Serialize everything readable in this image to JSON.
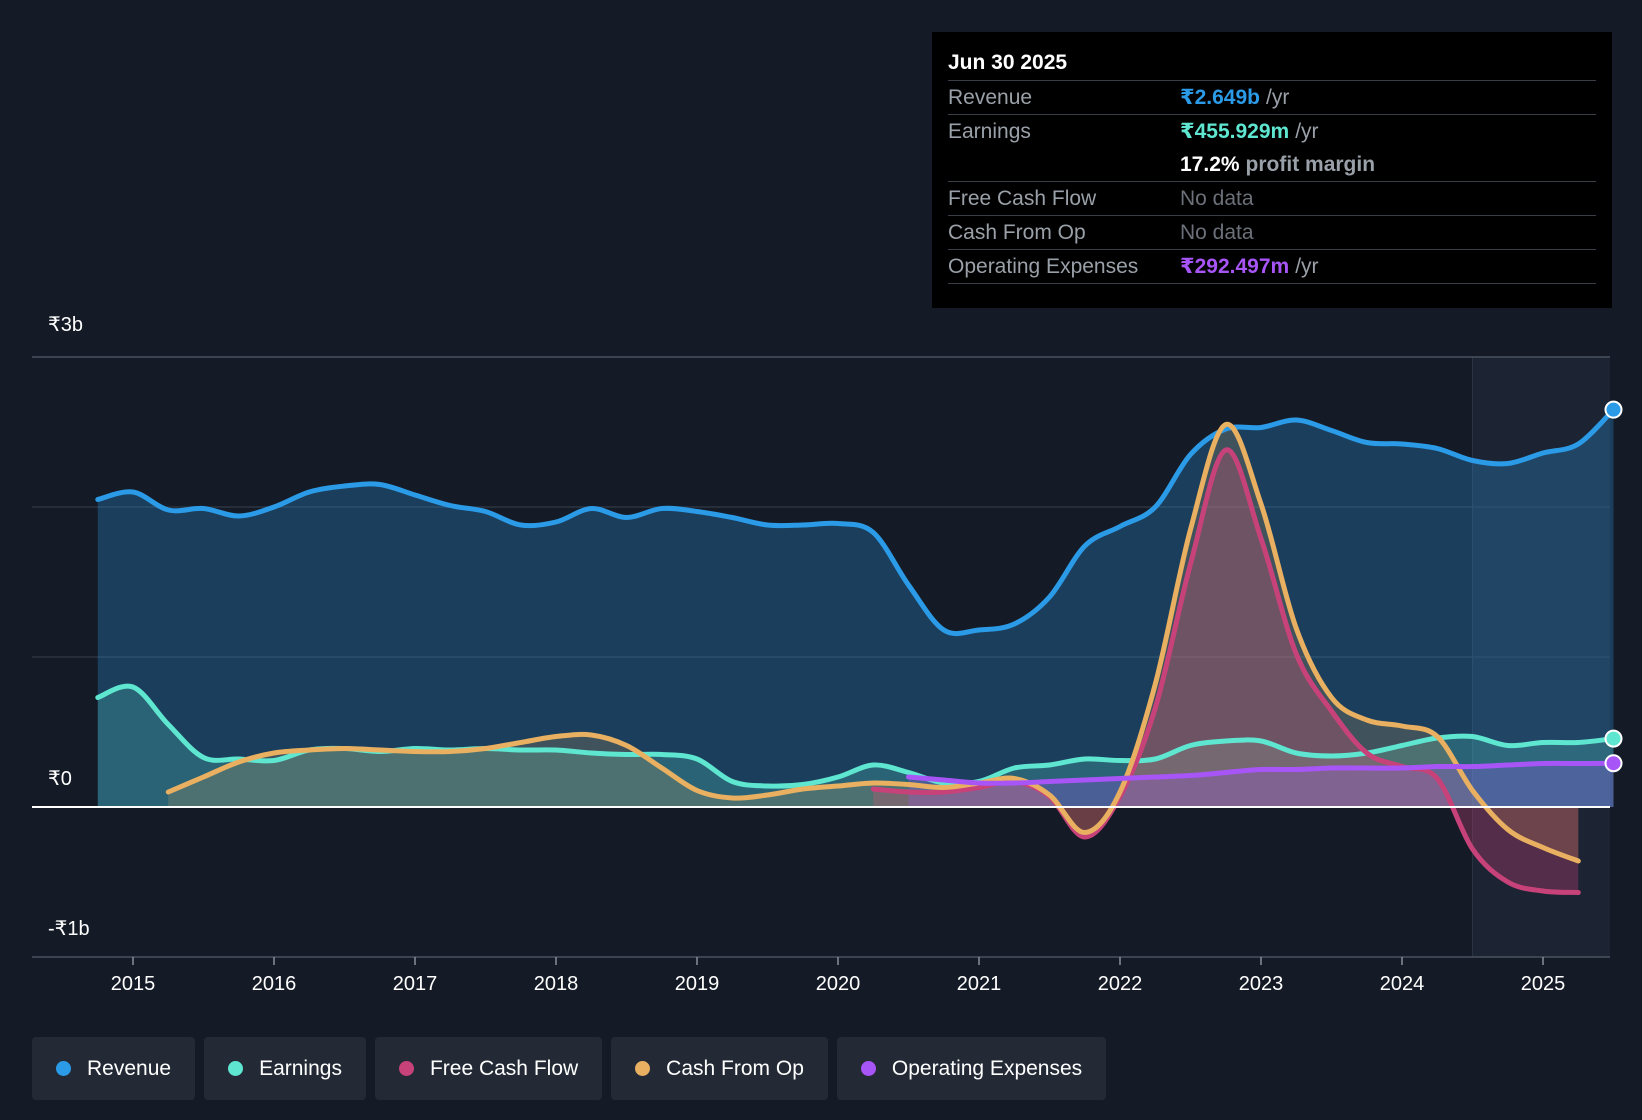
{
  "tooltip": {
    "date": "Jun 30 2025",
    "revenue_label": "Revenue",
    "revenue_value": "₹2.649b",
    "revenue_unit": "/yr",
    "earnings_label": "Earnings",
    "earnings_value": "₹455.929m",
    "earnings_unit": "/yr",
    "margin_value": "17.2%",
    "margin_label": "profit margin",
    "fcf_label": "Free Cash Flow",
    "fcf_value": "No data",
    "cfo_label": "Cash From Op",
    "cfo_value": "No data",
    "opex_label": "Operating Expenses",
    "opex_value": "₹292.497m",
    "opex_unit": "/yr"
  },
  "legend": {
    "revenue": "Revenue",
    "earnings": "Earnings",
    "fcf": "Free Cash Flow",
    "cfo": "Cash From Op",
    "opex": "Operating Expenses"
  },
  "colors": {
    "revenue": "#2b9be8",
    "earnings": "#5ee6d0",
    "fcf": "#c8427a",
    "cfo": "#e8b060",
    "opex": "#a855f7",
    "background": "#151b26"
  },
  "chart_data": {
    "type": "line",
    "title": "",
    "xlabel": "",
    "ylabel": "",
    "y_tick_labels": [
      "₹3b",
      "₹0",
      "-₹1b"
    ],
    "ylim": [
      -1.0,
      3.0
    ],
    "xlim": [
      2014.25,
      2025.5
    ],
    "x_ticks": [
      2015,
      2016,
      2017,
      2018,
      2019,
      2020,
      2021,
      2022,
      2023,
      2024,
      2025
    ],
    "x_tick_labels": [
      "2015",
      "2016",
      "2017",
      "2018",
      "2019",
      "2020",
      "2021",
      "2022",
      "2023",
      "2024",
      "2025"
    ],
    "forecast_start": 2024.5,
    "series": [
      {
        "name": "Revenue",
        "key": "revenue",
        "points": [
          [
            2014.75,
            2.05
          ],
          [
            2015.0,
            2.1
          ],
          [
            2015.25,
            1.98
          ],
          [
            2015.5,
            1.99
          ],
          [
            2015.75,
            1.94
          ],
          [
            2016.0,
            2.0
          ],
          [
            2016.25,
            2.1
          ],
          [
            2016.5,
            2.14
          ],
          [
            2016.75,
            2.15
          ],
          [
            2017.0,
            2.08
          ],
          [
            2017.25,
            2.01
          ],
          [
            2017.5,
            1.97
          ],
          [
            2017.75,
            1.88
          ],
          [
            2018.0,
            1.9
          ],
          [
            2018.25,
            1.99
          ],
          [
            2018.5,
            1.93
          ],
          [
            2018.75,
            1.99
          ],
          [
            2019.0,
            1.97
          ],
          [
            2019.25,
            1.93
          ],
          [
            2019.5,
            1.88
          ],
          [
            2019.75,
            1.88
          ],
          [
            2020.0,
            1.89
          ],
          [
            2020.25,
            1.83
          ],
          [
            2020.5,
            1.48
          ],
          [
            2020.75,
            1.18
          ],
          [
            2021.0,
            1.18
          ],
          [
            2021.25,
            1.22
          ],
          [
            2021.5,
            1.4
          ],
          [
            2021.75,
            1.74
          ],
          [
            2022.0,
            1.87
          ],
          [
            2022.25,
            2.0
          ],
          [
            2022.5,
            2.35
          ],
          [
            2022.75,
            2.52
          ],
          [
            2023.0,
            2.53
          ],
          [
            2023.25,
            2.58
          ],
          [
            2023.5,
            2.51
          ],
          [
            2023.75,
            2.43
          ],
          [
            2024.0,
            2.42
          ],
          [
            2024.25,
            2.39
          ],
          [
            2024.5,
            2.31
          ],
          [
            2024.75,
            2.29
          ],
          [
            2025.0,
            2.36
          ],
          [
            2025.25,
            2.42
          ],
          [
            2025.5,
            2.649
          ]
        ]
      },
      {
        "name": "Earnings",
        "key": "earnings",
        "points": [
          [
            2014.75,
            0.73
          ],
          [
            2015.0,
            0.8
          ],
          [
            2015.25,
            0.55
          ],
          [
            2015.5,
            0.33
          ],
          [
            2015.75,
            0.32
          ],
          [
            2016.0,
            0.31
          ],
          [
            2016.25,
            0.38
          ],
          [
            2016.5,
            0.39
          ],
          [
            2016.75,
            0.37
          ],
          [
            2017.0,
            0.39
          ],
          [
            2017.25,
            0.38
          ],
          [
            2017.5,
            0.39
          ],
          [
            2017.75,
            0.38
          ],
          [
            2018.0,
            0.38
          ],
          [
            2018.25,
            0.36
          ],
          [
            2018.5,
            0.35
          ],
          [
            2018.75,
            0.35
          ],
          [
            2019.0,
            0.32
          ],
          [
            2019.25,
            0.17
          ],
          [
            2019.5,
            0.14
          ],
          [
            2019.75,
            0.15
          ],
          [
            2020.0,
            0.2
          ],
          [
            2020.25,
            0.28
          ],
          [
            2020.5,
            0.23
          ],
          [
            2020.75,
            0.16
          ],
          [
            2021.0,
            0.17
          ],
          [
            2021.25,
            0.26
          ],
          [
            2021.5,
            0.28
          ],
          [
            2021.75,
            0.32
          ],
          [
            2022.0,
            0.31
          ],
          [
            2022.25,
            0.32
          ],
          [
            2022.5,
            0.41
          ],
          [
            2022.75,
            0.44
          ],
          [
            2023.0,
            0.44
          ],
          [
            2023.25,
            0.36
          ],
          [
            2023.5,
            0.34
          ],
          [
            2023.75,
            0.36
          ],
          [
            2024.0,
            0.41
          ],
          [
            2024.25,
            0.46
          ],
          [
            2024.5,
            0.47
          ],
          [
            2024.75,
            0.41
          ],
          [
            2025.0,
            0.43
          ],
          [
            2025.25,
            0.43
          ],
          [
            2025.5,
            0.456
          ]
        ]
      },
      {
        "name": "Free Cash Flow",
        "key": "fcf",
        "points": [
          [
            2020.25,
            0.12
          ],
          [
            2020.5,
            0.1
          ],
          [
            2020.75,
            0.1
          ],
          [
            2021.0,
            0.13
          ],
          [
            2021.25,
            0.17
          ],
          [
            2021.5,
            0.07
          ],
          [
            2021.75,
            -0.2
          ],
          [
            2022.0,
            0.07
          ],
          [
            2022.25,
            0.66
          ],
          [
            2022.5,
            1.62
          ],
          [
            2022.75,
            2.38
          ],
          [
            2023.0,
            1.79
          ],
          [
            2023.25,
            1.02
          ],
          [
            2023.5,
            0.64
          ],
          [
            2023.75,
            0.36
          ],
          [
            2024.0,
            0.27
          ],
          [
            2024.25,
            0.19
          ],
          [
            2024.5,
            -0.28
          ],
          [
            2024.75,
            -0.5
          ],
          [
            2025.0,
            -0.56
          ],
          [
            2025.25,
            -0.57
          ]
        ]
      },
      {
        "name": "Cash From Op",
        "key": "cfo",
        "points": [
          [
            2015.25,
            0.1
          ],
          [
            2015.5,
            0.2
          ],
          [
            2015.75,
            0.3
          ],
          [
            2016.0,
            0.36
          ],
          [
            2016.25,
            0.38
          ],
          [
            2016.5,
            0.39
          ],
          [
            2016.75,
            0.38
          ],
          [
            2017.0,
            0.37
          ],
          [
            2017.25,
            0.37
          ],
          [
            2017.5,
            0.39
          ],
          [
            2017.75,
            0.43
          ],
          [
            2018.0,
            0.47
          ],
          [
            2018.25,
            0.48
          ],
          [
            2018.5,
            0.41
          ],
          [
            2018.75,
            0.26
          ],
          [
            2019.0,
            0.11
          ],
          [
            2019.25,
            0.06
          ],
          [
            2019.5,
            0.08
          ],
          [
            2019.75,
            0.12
          ],
          [
            2020.0,
            0.14
          ],
          [
            2020.25,
            0.16
          ],
          [
            2020.5,
            0.15
          ],
          [
            2020.75,
            0.13
          ],
          [
            2021.0,
            0.16
          ],
          [
            2021.25,
            0.19
          ],
          [
            2021.5,
            0.08
          ],
          [
            2021.75,
            -0.17
          ],
          [
            2022.0,
            0.1
          ],
          [
            2022.25,
            0.82
          ],
          [
            2022.5,
            1.85
          ],
          [
            2022.75,
            2.55
          ],
          [
            2023.0,
            2.02
          ],
          [
            2023.25,
            1.19
          ],
          [
            2023.5,
            0.73
          ],
          [
            2023.75,
            0.58
          ],
          [
            2024.0,
            0.54
          ],
          [
            2024.25,
            0.47
          ],
          [
            2024.5,
            0.11
          ],
          [
            2024.75,
            -0.15
          ],
          [
            2025.0,
            -0.27
          ],
          [
            2025.25,
            -0.36
          ]
        ]
      },
      {
        "name": "Operating Expenses",
        "key": "opex",
        "points": [
          [
            2020.5,
            0.2
          ],
          [
            2020.75,
            0.18
          ],
          [
            2021.0,
            0.16
          ],
          [
            2021.25,
            0.16
          ],
          [
            2021.5,
            0.17
          ],
          [
            2021.75,
            0.18
          ],
          [
            2022.0,
            0.19
          ],
          [
            2022.25,
            0.2
          ],
          [
            2022.5,
            0.21
          ],
          [
            2022.75,
            0.23
          ],
          [
            2023.0,
            0.25
          ],
          [
            2023.25,
            0.25
          ],
          [
            2023.5,
            0.26
          ],
          [
            2023.75,
            0.26
          ],
          [
            2024.0,
            0.26
          ],
          [
            2024.25,
            0.27
          ],
          [
            2024.5,
            0.27
          ],
          [
            2024.75,
            0.28
          ],
          [
            2025.0,
            0.29
          ],
          [
            2025.25,
            0.29
          ],
          [
            2025.5,
            0.292
          ]
        ]
      }
    ]
  }
}
